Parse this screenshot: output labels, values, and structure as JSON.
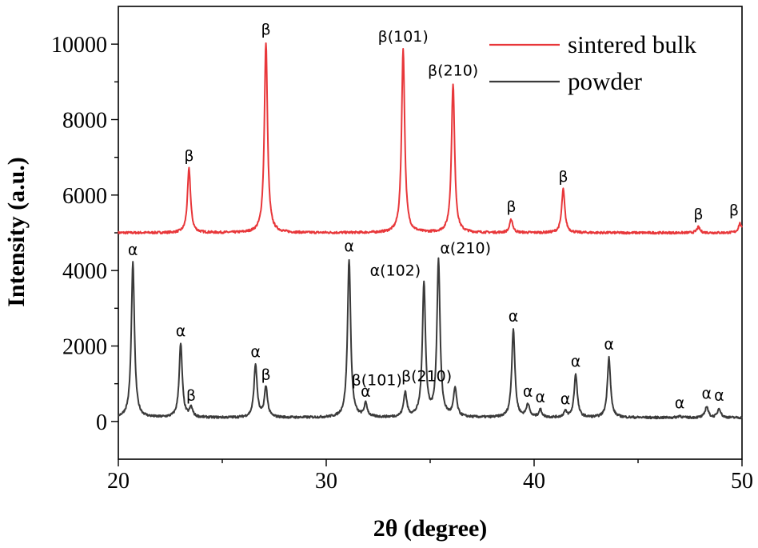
{
  "chart_data": {
    "type": "line",
    "xlabel": "2θ (degree)",
    "ylabel": "Intensity (a.u.)",
    "xlim": [
      20,
      50
    ],
    "ylim": [
      -1000,
      11000
    ],
    "x_ticks": [
      20,
      30,
      40,
      50
    ],
    "y_ticks": [
      0,
      2000,
      4000,
      6000,
      8000,
      10000
    ],
    "grid": false,
    "legend_position": "top-right",
    "series": [
      {
        "name": "sintered bulk",
        "color": "#e8373a",
        "baseline": 5000,
        "peaks": [
          {
            "x": 23.4,
            "y": 6700,
            "label": "β"
          },
          {
            "x": 27.1,
            "y": 10050,
            "label": "β"
          },
          {
            "x": 33.7,
            "y": 9850,
            "label": "β(101)"
          },
          {
            "x": 36.1,
            "y": 8950,
            "label": "β(210)"
          },
          {
            "x": 38.9,
            "y": 5350,
            "label": "β"
          },
          {
            "x": 41.4,
            "y": 6150,
            "label": "β"
          },
          {
            "x": 47.9,
            "y": 5150,
            "label": "β"
          },
          {
            "x": 49.9,
            "y": 5250,
            "label": "β"
          }
        ]
      },
      {
        "name": "powder",
        "color": "#3a3a3a",
        "baseline": 100,
        "peaks": [
          {
            "x": 20.7,
            "y": 4200,
            "label": "α"
          },
          {
            "x": 23.0,
            "y": 2050,
            "label": "α"
          },
          {
            "x": 23.5,
            "y": 350,
            "label": "β"
          },
          {
            "x": 26.6,
            "y": 1500,
            "label": "α"
          },
          {
            "x": 27.1,
            "y": 900,
            "label": "β"
          },
          {
            "x": 31.1,
            "y": 4300,
            "label": "α"
          },
          {
            "x": 31.9,
            "y": 450,
            "label": "α"
          },
          {
            "x": 33.8,
            "y": 750,
            "label": "β(101)"
          },
          {
            "x": 34.7,
            "y": 3650,
            "label": "α(102)"
          },
          {
            "x": 35.4,
            "y": 4250,
            "label": "α(210)"
          },
          {
            "x": 36.2,
            "y": 850,
            "label": "β(210)"
          },
          {
            "x": 39.0,
            "y": 2450,
            "label": "α"
          },
          {
            "x": 39.7,
            "y": 450,
            "label": "α"
          },
          {
            "x": 40.3,
            "y": 300,
            "label": "α"
          },
          {
            "x": 41.5,
            "y": 250,
            "label": "α"
          },
          {
            "x": 42.0,
            "y": 1250,
            "label": "α"
          },
          {
            "x": 43.6,
            "y": 1700,
            "label": "α"
          },
          {
            "x": 47.0,
            "y": 150,
            "label": "α"
          },
          {
            "x": 48.3,
            "y": 400,
            "label": "α"
          },
          {
            "x": 48.9,
            "y": 350,
            "label": "α"
          }
        ]
      }
    ]
  }
}
